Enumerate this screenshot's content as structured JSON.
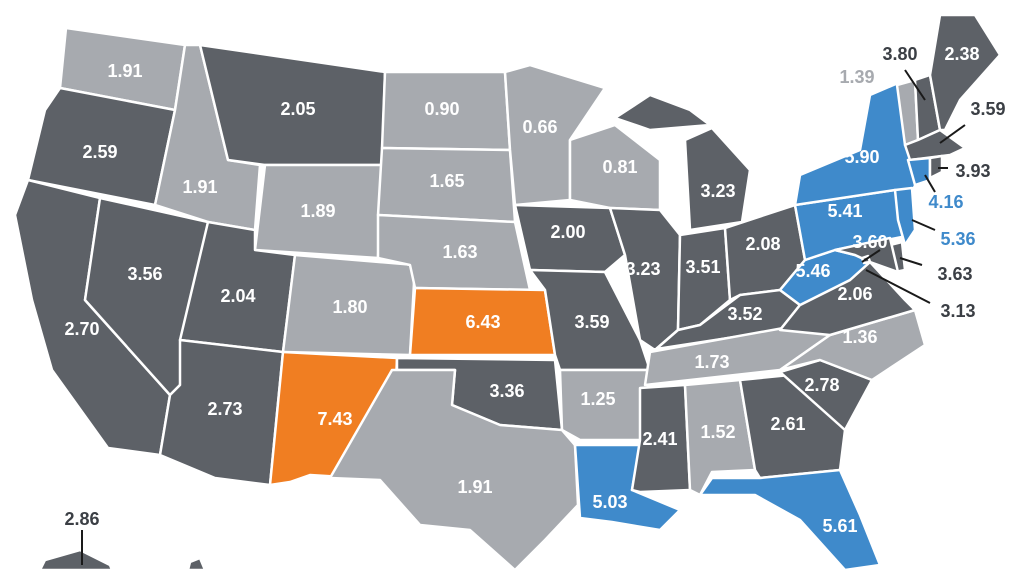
{
  "colors": {
    "dark": "#5d6167",
    "light": "#a7aaaf",
    "orange": "#f07e22",
    "blue": "#3f8acb",
    "label_on_fill": "#ffffff",
    "label_dark": "#3b3f45",
    "label_light": "#a7aaaf",
    "label_blue": "#3f8acb"
  },
  "states": {
    "WA": {
      "value": "1.91",
      "category": "light"
    },
    "OR": {
      "value": "2.59",
      "category": "dark"
    },
    "CA": {
      "value": "2.70",
      "category": "dark"
    },
    "NV": {
      "value": "3.56",
      "category": "dark"
    },
    "ID": {
      "value": "1.91",
      "category": "light"
    },
    "MT": {
      "value": "2.05",
      "category": "dark"
    },
    "WY": {
      "value": "1.89",
      "category": "light"
    },
    "UT": {
      "value": "2.04",
      "category": "dark"
    },
    "AZ": {
      "value": "2.73",
      "category": "dark"
    },
    "CO": {
      "value": "1.80",
      "category": "light"
    },
    "NM": {
      "value": "7.43",
      "category": "orange"
    },
    "ND": {
      "value": "0.90",
      "category": "light"
    },
    "SD": {
      "value": "1.65",
      "category": "light"
    },
    "NE": {
      "value": "1.63",
      "category": "light"
    },
    "KS": {
      "value": "6.43",
      "category": "orange"
    },
    "OK": {
      "value": "3.36",
      "category": "dark"
    },
    "TX": {
      "value": "1.91",
      "category": "light"
    },
    "MN": {
      "value": "0.66",
      "category": "light"
    },
    "IA": {
      "value": "2.00",
      "category": "dark"
    },
    "MO": {
      "value": "3.59",
      "category": "dark"
    },
    "AR": {
      "value": "1.25",
      "category": "light"
    },
    "LA": {
      "value": "5.03",
      "category": "blue"
    },
    "WI": {
      "value": "0.81",
      "category": "light"
    },
    "IL": {
      "value": "3.23",
      "category": "dark"
    },
    "MI": {
      "value": "3.23",
      "category": "dark"
    },
    "IN": {
      "value": "3.51",
      "category": "dark"
    },
    "OH": {
      "value": "2.08",
      "category": "dark"
    },
    "KY": {
      "value": "3.52",
      "category": "dark"
    },
    "TN": {
      "value": "1.73",
      "category": "light"
    },
    "MS": {
      "value": "2.41",
      "category": "dark"
    },
    "AL": {
      "value": "1.52",
      "category": "light"
    },
    "GA": {
      "value": "2.61",
      "category": "dark"
    },
    "FL": {
      "value": "5.61",
      "category": "blue"
    },
    "SC": {
      "value": "2.78",
      "category": "dark"
    },
    "NC": {
      "value": "1.36",
      "category": "light"
    },
    "VA": {
      "value": "2.06",
      "category": "dark"
    },
    "WV": {
      "value": "5.46",
      "category": "blue"
    },
    "PA": {
      "value": "5.41",
      "category": "blue"
    },
    "NY": {
      "value": "5.90",
      "category": "blue"
    },
    "ME": {
      "value": "2.38",
      "category": "dark"
    },
    "VT": {
      "value": "1.39",
      "category": "light"
    },
    "NH": {
      "value": "3.80",
      "category": "dark"
    },
    "MA": {
      "value": "3.59",
      "category": "dark"
    },
    "RI": {
      "value": "3.93",
      "category": "dark"
    },
    "CT": {
      "value": "4.16",
      "category": "blue"
    },
    "NJ": {
      "value": "5.36",
      "category": "blue"
    },
    "DE": {
      "value": "3.63",
      "category": "dark"
    },
    "MD": {
      "value": "3.60",
      "category": "dark"
    },
    "DC": {
      "value": "3.13",
      "category": "dark"
    },
    "AK": {
      "value": "2.86",
      "category": "dark"
    }
  }
}
